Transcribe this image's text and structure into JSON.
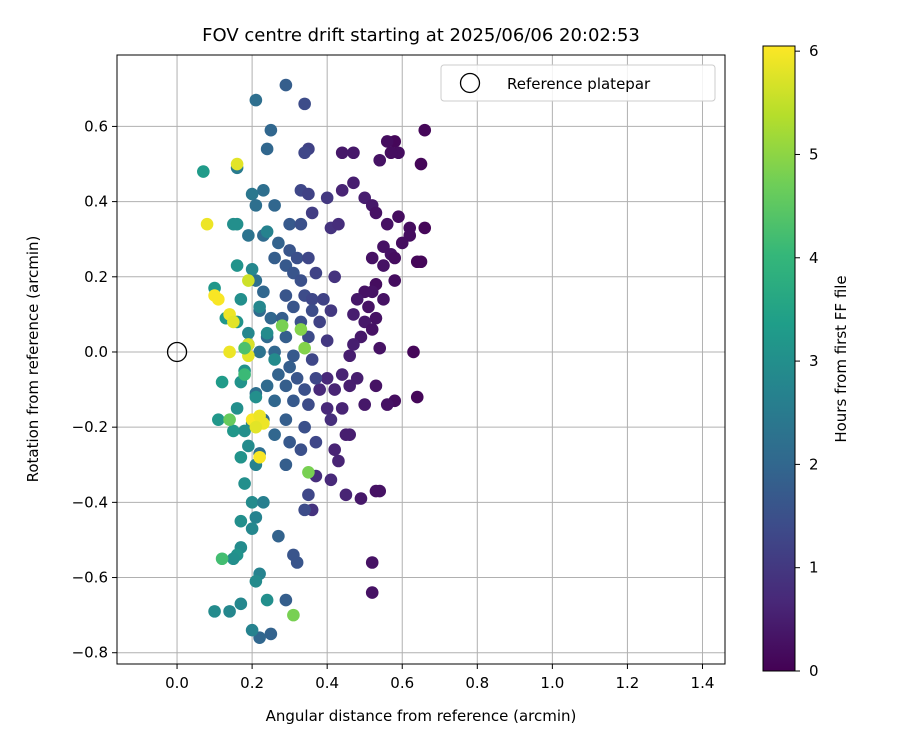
{
  "chart_data": {
    "type": "scatter",
    "title": "FOV centre drift starting at 2025/06/06 20:02:53",
    "xlabel": "Angular distance from reference (arcmin)",
    "ylabel": "Rotation from reference (arcmin)",
    "xlim": [
      -0.16,
      1.46
    ],
    "ylim": [
      -0.83,
      0.79
    ],
    "xticks": [
      0.0,
      0.2,
      0.4,
      0.6,
      0.8,
      1.0,
      1.2,
      1.4
    ],
    "xtick_labels": [
      "0.0",
      "0.2",
      "0.4",
      "0.6",
      "0.8",
      "1.0",
      "1.2",
      "1.4"
    ],
    "yticks": [
      -0.8,
      -0.6,
      -0.4,
      -0.2,
      0.0,
      0.2,
      0.4,
      0.6
    ],
    "ytick_labels": [
      "−0.8",
      "−0.6",
      "−0.4",
      "−0.2",
      "0.0",
      "0.2",
      "0.4",
      "0.6"
    ],
    "grid": true,
    "legend": {
      "placement": "top-right",
      "entries": [
        {
          "label": "Reference platepar",
          "marker": "open-circle"
        }
      ]
    },
    "reference_point": {
      "x": 0.0,
      "y": 0.0
    },
    "colorbar": {
      "label": "Hours from first FF file",
      "colormap": "viridis",
      "range": [
        0,
        6.05
      ],
      "ticks": [
        0,
        1,
        2,
        3,
        4,
        5,
        6
      ],
      "tick_labels": [
        "0",
        "1",
        "2",
        "3",
        "4",
        "5",
        "6"
      ]
    },
    "colormap_stops": [
      "#440154",
      "#482878",
      "#3e4989",
      "#31688e",
      "#26828e",
      "#1f9e89",
      "#35b779",
      "#6ece58",
      "#b5de2b",
      "#fde725"
    ],
    "series": [
      {
        "points": [
          [
            0.66,
            0.59,
            0.1
          ],
          [
            0.58,
            0.56,
            0.1
          ],
          [
            0.56,
            0.56,
            0.2
          ],
          [
            0.65,
            0.5,
            0.1
          ],
          [
            0.59,
            0.53,
            0.2
          ],
          [
            0.57,
            0.53,
            0.2
          ],
          [
            0.54,
            0.51,
            0.3
          ],
          [
            0.47,
            0.53,
            0.4
          ],
          [
            0.44,
            0.53,
            0.4
          ],
          [
            0.47,
            0.45,
            0.5
          ],
          [
            0.44,
            0.43,
            0.6
          ],
          [
            0.5,
            0.41,
            0.5
          ],
          [
            0.52,
            0.39,
            0.4
          ],
          [
            0.53,
            0.37,
            0.3
          ],
          [
            0.59,
            0.36,
            0.2
          ],
          [
            0.56,
            0.34,
            0.3
          ],
          [
            0.62,
            0.33,
            0.2
          ],
          [
            0.66,
            0.33,
            0.1
          ],
          [
            0.62,
            0.31,
            0.2
          ],
          [
            0.6,
            0.29,
            0.2
          ],
          [
            0.55,
            0.28,
            0.3
          ],
          [
            0.57,
            0.26,
            0.3
          ],
          [
            0.52,
            0.25,
            0.3
          ],
          [
            0.58,
            0.25,
            0.2
          ],
          [
            0.65,
            0.24,
            0.1
          ],
          [
            0.64,
            0.24,
            0.1
          ],
          [
            0.55,
            0.23,
            0.3
          ],
          [
            0.58,
            0.19,
            0.2
          ],
          [
            0.53,
            0.18,
            0.2
          ],
          [
            0.5,
            0.16,
            0.3
          ],
          [
            0.52,
            0.16,
            0.3
          ],
          [
            0.48,
            0.14,
            0.4
          ],
          [
            0.55,
            0.14,
            0.3
          ],
          [
            0.51,
            0.12,
            0.3
          ],
          [
            0.47,
            0.1,
            0.5
          ],
          [
            0.53,
            0.09,
            0.3
          ],
          [
            0.5,
            0.08,
            0.4
          ],
          [
            0.52,
            0.06,
            0.3
          ],
          [
            0.49,
            0.04,
            0.4
          ],
          [
            0.47,
            0.02,
            0.5
          ],
          [
            0.46,
            -0.01,
            0.5
          ],
          [
            0.54,
            0.01,
            0.3
          ],
          [
            0.63,
            0.0,
            0.1
          ],
          [
            0.44,
            -0.06,
            0.6
          ],
          [
            0.48,
            -0.07,
            0.5
          ],
          [
            0.4,
            -0.07,
            0.7
          ],
          [
            0.53,
            -0.09,
            0.3
          ],
          [
            0.46,
            -0.09,
            0.5
          ],
          [
            0.42,
            -0.1,
            0.6
          ],
          [
            0.38,
            -0.1,
            0.7
          ],
          [
            0.64,
            -0.12,
            0.1
          ],
          [
            0.58,
            -0.13,
            0.2
          ],
          [
            0.56,
            -0.14,
            0.3
          ],
          [
            0.5,
            -0.14,
            0.4
          ],
          [
            0.44,
            -0.15,
            0.6
          ],
          [
            0.4,
            -0.15,
            0.7
          ],
          [
            0.45,
            -0.22,
            0.5
          ],
          [
            0.46,
            -0.22,
            0.5
          ],
          [
            0.42,
            -0.26,
            0.6
          ],
          [
            0.43,
            -0.29,
            0.6
          ],
          [
            0.37,
            -0.33,
            0.8
          ],
          [
            0.41,
            -0.34,
            0.7
          ],
          [
            0.53,
            -0.37,
            0.3
          ],
          [
            0.54,
            -0.37,
            0.3
          ],
          [
            0.45,
            -0.38,
            0.6
          ],
          [
            0.49,
            -0.39,
            0.4
          ],
          [
            0.36,
            -0.42,
            0.9
          ],
          [
            0.52,
            -0.56,
            0.3
          ],
          [
            0.52,
            -0.64,
            0.3
          ],
          [
            0.29,
            0.71,
            1.8
          ],
          [
            0.21,
            0.67,
            2.2
          ],
          [
            0.34,
            0.66,
            1.4
          ],
          [
            0.25,
            0.59,
            2.0
          ],
          [
            0.35,
            0.54,
            1.2
          ],
          [
            0.34,
            0.53,
            1.3
          ],
          [
            0.24,
            0.54,
            2.0
          ],
          [
            0.16,
            0.49,
            2.5
          ],
          [
            0.33,
            0.43,
            1.3
          ],
          [
            0.35,
            0.42,
            1.2
          ],
          [
            0.4,
            0.41,
            1.0
          ],
          [
            0.23,
            0.43,
            2.2
          ],
          [
            0.2,
            0.42,
            2.4
          ],
          [
            0.26,
            0.39,
            2.0
          ],
          [
            0.21,
            0.39,
            2.2
          ],
          [
            0.36,
            0.37,
            1.1
          ],
          [
            0.41,
            0.33,
            0.9
          ],
          [
            0.43,
            0.34,
            0.8
          ],
          [
            0.3,
            0.34,
            1.7
          ],
          [
            0.33,
            0.34,
            1.5
          ],
          [
            0.19,
            0.31,
            2.3
          ],
          [
            0.23,
            0.31,
            2.1
          ],
          [
            0.27,
            0.29,
            1.9
          ],
          [
            0.3,
            0.27,
            1.6
          ],
          [
            0.32,
            0.25,
            1.5
          ],
          [
            0.35,
            0.25,
            1.3
          ],
          [
            0.26,
            0.25,
            1.8
          ],
          [
            0.29,
            0.23,
            1.7
          ],
          [
            0.37,
            0.21,
            1.2
          ],
          [
            0.31,
            0.21,
            1.6
          ],
          [
            0.33,
            0.19,
            1.5
          ],
          [
            0.42,
            0.2,
            0.9
          ],
          [
            0.21,
            0.19,
            2.2
          ],
          [
            0.23,
            0.16,
            2.0
          ],
          [
            0.29,
            0.15,
            1.6
          ],
          [
            0.34,
            0.15,
            1.4
          ],
          [
            0.36,
            0.14,
            1.3
          ],
          [
            0.39,
            0.14,
            1.2
          ],
          [
            0.31,
            0.12,
            1.6
          ],
          [
            0.36,
            0.11,
            1.4
          ],
          [
            0.41,
            0.11,
            1.0
          ],
          [
            0.22,
            0.11,
            2.1
          ],
          [
            0.25,
            0.09,
            2.0
          ],
          [
            0.28,
            0.09,
            1.8
          ],
          [
            0.33,
            0.08,
            1.5
          ],
          [
            0.38,
            0.08,
            1.2
          ],
          [
            0.24,
            0.04,
            2.1
          ],
          [
            0.29,
            0.04,
            1.8
          ],
          [
            0.35,
            0.04,
            1.4
          ],
          [
            0.4,
            0.03,
            1.0
          ],
          [
            0.19,
            0.02,
            2.4
          ],
          [
            0.22,
            0.0,
            2.3
          ],
          [
            0.26,
            0.0,
            2.0
          ],
          [
            0.31,
            -0.01,
            1.7
          ],
          [
            0.36,
            -0.02,
            1.3
          ],
          [
            0.3,
            -0.04,
            1.8
          ],
          [
            0.27,
            -0.06,
            1.9
          ],
          [
            0.32,
            -0.07,
            1.6
          ],
          [
            0.37,
            -0.07,
            1.3
          ],
          [
            0.24,
            -0.09,
            2.1
          ],
          [
            0.29,
            -0.09,
            1.8
          ],
          [
            0.34,
            -0.1,
            1.5
          ],
          [
            0.21,
            -0.11,
            2.2
          ],
          [
            0.26,
            -0.13,
            2.0
          ],
          [
            0.31,
            -0.13,
            1.7
          ],
          [
            0.35,
            -0.14,
            1.4
          ],
          [
            0.23,
            -0.18,
            2.1
          ],
          [
            0.29,
            -0.18,
            1.8
          ],
          [
            0.34,
            -0.2,
            1.5
          ],
          [
            0.37,
            -0.24,
            1.3
          ],
          [
            0.26,
            -0.22,
            2.0
          ],
          [
            0.3,
            -0.24,
            1.7
          ],
          [
            0.33,
            -0.26,
            1.5
          ],
          [
            0.22,
            -0.27,
            2.2
          ],
          [
            0.29,
            -0.3,
            1.8
          ],
          [
            0.35,
            -0.38,
            1.3
          ],
          [
            0.34,
            -0.42,
            1.4
          ],
          [
            0.27,
            -0.49,
            1.9
          ],
          [
            0.31,
            -0.54,
            1.6
          ],
          [
            0.32,
            -0.56,
            1.6
          ],
          [
            0.29,
            -0.66,
            1.8
          ],
          [
            0.25,
            -0.75,
            1.9
          ],
          [
            0.22,
            -0.76,
            2.0
          ],
          [
            0.41,
            -0.18,
            0.8
          ],
          [
            0.07,
            0.48,
            3.3
          ],
          [
            0.16,
            0.34,
            3.0
          ],
          [
            0.15,
            0.34,
            3.0
          ],
          [
            0.24,
            0.32,
            2.7
          ],
          [
            0.2,
            0.22,
            2.8
          ],
          [
            0.16,
            0.23,
            3.1
          ],
          [
            0.1,
            0.17,
            3.2
          ],
          [
            0.17,
            0.14,
            3.0
          ],
          [
            0.13,
            0.09,
            3.2
          ],
          [
            0.22,
            0.12,
            2.8
          ],
          [
            0.24,
            0.05,
            2.9
          ],
          [
            0.19,
            0.05,
            2.8
          ],
          [
            0.16,
            0.08,
            3.1
          ],
          [
            0.26,
            -0.02,
            2.9
          ],
          [
            0.18,
            -0.05,
            3.1
          ],
          [
            0.12,
            -0.08,
            3.3
          ],
          [
            0.17,
            -0.08,
            3.1
          ],
          [
            0.21,
            -0.12,
            3.0
          ],
          [
            0.16,
            -0.15,
            3.0
          ],
          [
            0.2,
            -0.19,
            2.7
          ],
          [
            0.18,
            -0.21,
            3.0
          ],
          [
            0.15,
            -0.21,
            3.2
          ],
          [
            0.11,
            -0.18,
            3.2
          ],
          [
            0.19,
            -0.25,
            2.9
          ],
          [
            0.17,
            -0.28,
            3.1
          ],
          [
            0.21,
            -0.3,
            2.7
          ],
          [
            0.18,
            -0.35,
            3.0
          ],
          [
            0.2,
            -0.4,
            2.9
          ],
          [
            0.23,
            -0.4,
            2.6
          ],
          [
            0.21,
            -0.44,
            2.7
          ],
          [
            0.17,
            -0.45,
            3.0
          ],
          [
            0.2,
            -0.47,
            2.8
          ],
          [
            0.17,
            -0.52,
            2.9
          ],
          [
            0.16,
            -0.54,
            3.1
          ],
          [
            0.15,
            -0.55,
            3.0
          ],
          [
            0.22,
            -0.59,
            2.7
          ],
          [
            0.21,
            -0.61,
            2.9
          ],
          [
            0.17,
            -0.67,
            2.8
          ],
          [
            0.1,
            -0.69,
            2.9
          ],
          [
            0.14,
            -0.69,
            2.8
          ],
          [
            0.24,
            -0.66,
            3.0
          ],
          [
            0.2,
            -0.74,
            2.7
          ],
          [
            0.16,
            0.5,
            5.8
          ],
          [
            0.08,
            0.34,
            5.9
          ],
          [
            0.19,
            0.19,
            5.6
          ],
          [
            0.1,
            0.15,
            6.0
          ],
          [
            0.11,
            0.14,
            6.0
          ],
          [
            0.14,
            0.1,
            5.9
          ],
          [
            0.15,
            0.08,
            5.8
          ],
          [
            0.14,
            0.0,
            5.9
          ],
          [
            0.19,
            0.02,
            5.7
          ],
          [
            0.19,
            -0.01,
            5.8
          ],
          [
            0.2,
            -0.18,
            6.0
          ],
          [
            0.22,
            -0.17,
            5.9
          ],
          [
            0.23,
            -0.19,
            5.9
          ],
          [
            0.21,
            -0.2,
            5.8
          ],
          [
            0.22,
            -0.28,
            6.0
          ],
          [
            0.28,
            0.07,
            4.8
          ],
          [
            0.33,
            0.06,
            4.9
          ],
          [
            0.34,
            0.01,
            4.9
          ],
          [
            0.14,
            -0.18,
            4.6
          ],
          [
            0.12,
            -0.55,
            4.2
          ],
          [
            0.35,
            -0.32,
            4.8
          ],
          [
            0.31,
            -0.7,
            4.8
          ],
          [
            0.18,
            -0.06,
            4.1
          ],
          [
            0.18,
            0.01,
            4.3
          ]
        ]
      }
    ]
  }
}
